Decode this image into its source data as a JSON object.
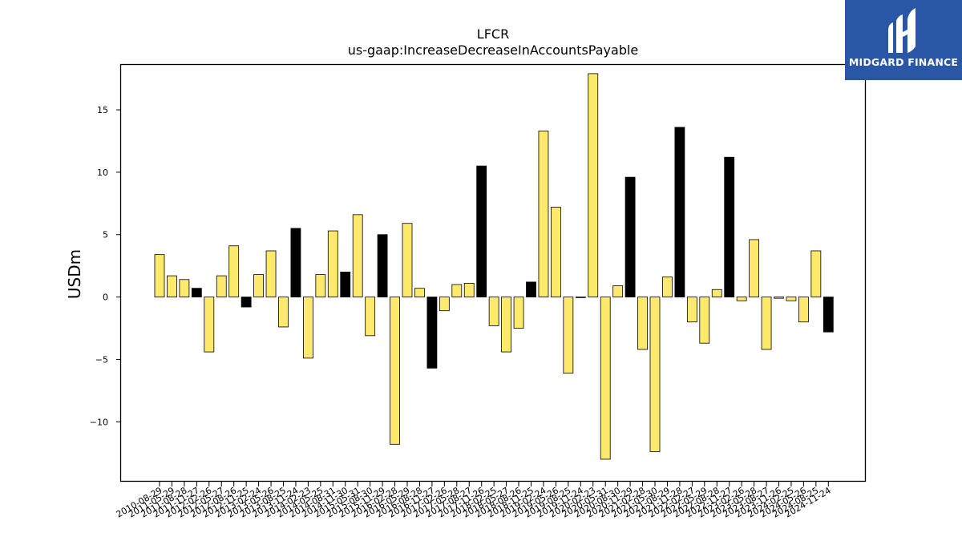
{
  "chart_data": {
    "type": "bar",
    "title": "LFCR",
    "subtitle": "us-gaap:IncreaseDecreaseInAccountsPayable",
    "xlabel": "",
    "ylabel": "USDm",
    "ylim": [
      -14.8,
      18.6
    ],
    "yticks": [
      -10,
      -5,
      0,
      5,
      10,
      15
    ],
    "ytick_labels": [
      "−10",
      "−5",
      "0",
      "5",
      "10",
      "15"
    ],
    "grid": false,
    "colors": {
      "quarter": "#fde96c",
      "fiscal_year": "#000000",
      "edge": "#000000"
    },
    "categories": [
      "2010-08-29",
      "2011-05-29",
      "2011-08-28",
      "2011-11-27",
      "2012-02-26",
      "2012-05-27",
      "2012-08-26",
      "2012-11-25",
      "2013-02-24",
      "2013-05-26",
      "2013-08-25",
      "2013-11-24",
      "2014-02-23",
      "2014-05-25",
      "2014-08-31",
      "2014-11-30",
      "2015-05-31",
      "2015-08-30",
      "2015-11-29",
      "2016-02-28",
      "2016-05-29",
      "2016-08-28",
      "2016-11-27",
      "2017-02-26",
      "2017-05-28",
      "2017-08-27",
      "2017-11-26",
      "2018-02-25",
      "2018-05-27",
      "2018-08-26",
      "2018-11-25",
      "2019-02-24",
      "2019-05-26",
      "2019-08-25",
      "2019-11-24",
      "2020-02-23",
      "2020-05-31",
      "2020-08-30",
      "2020-11-29",
      "2021-02-28",
      "2021-05-30",
      "2021-08-29",
      "2021-11-28",
      "2022-02-27",
      "2022-05-29",
      "2022-08-28",
      "2022-11-27",
      "2023-02-26",
      "2023-05-28",
      "2023-08-27",
      "2023-11-26",
      "2024-02-25",
      "2024-05-26",
      "2024-08-25",
      "2024-11-24"
    ],
    "values": [
      3.4,
      1.7,
      1.4,
      0.7,
      -4.4,
      1.7,
      4.1,
      -0.8,
      1.8,
      3.7,
      -2.4,
      5.5,
      -4.9,
      1.8,
      5.3,
      2.0,
      6.6,
      -3.1,
      5.0,
      -11.8,
      5.9,
      0.7,
      -5.7,
      -1.1,
      1.0,
      1.1,
      10.5,
      -2.3,
      -4.4,
      -2.5,
      1.2,
      13.3,
      7.2,
      -6.1,
      0.0,
      17.9,
      -13.0,
      0.9,
      9.6,
      -4.2,
      -12.4,
      1.6,
      13.6,
      -2.0,
      -3.7,
      0.6,
      11.2,
      -0.3,
      4.6,
      -4.2,
      -0.1,
      -0.3,
      -2.0,
      3.7,
      -2.8
    ],
    "fiscal_year_end": [
      false,
      false,
      false,
      true,
      false,
      false,
      false,
      true,
      false,
      false,
      false,
      true,
      false,
      false,
      false,
      true,
      false,
      false,
      true,
      false,
      false,
      false,
      true,
      false,
      false,
      false,
      true,
      false,
      false,
      false,
      true,
      false,
      false,
      false,
      false,
      false,
      false,
      false,
      true,
      false,
      false,
      false,
      true,
      false,
      false,
      false,
      true,
      false,
      false,
      false,
      false,
      false,
      false,
      false,
      true
    ]
  },
  "logo": {
    "text": "MIDGARD FINANCE",
    "icon": "midgard-logo-icon"
  }
}
